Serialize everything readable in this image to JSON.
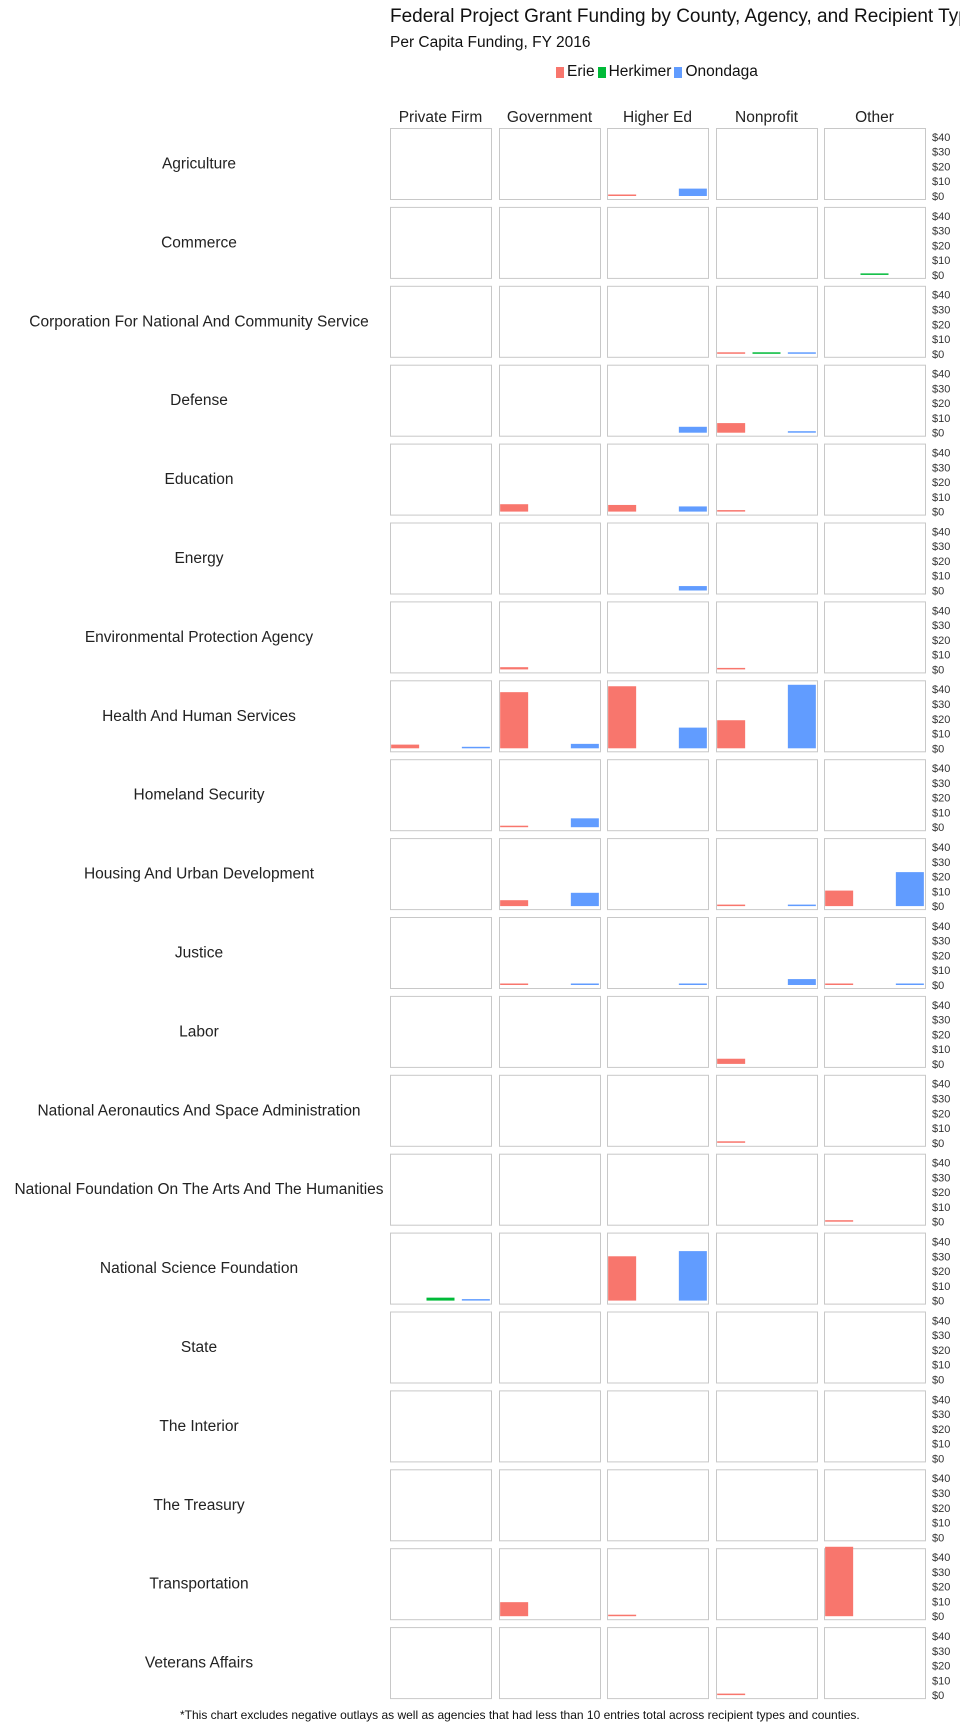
{
  "title": "Federal Project Grant Funding by County, Agency, and Recipient Type",
  "subtitle": "Per Capita Funding, FY 2016",
  "footnote": "*This chart excludes negative outlays as well as agencies that had less than 10 entries total across recipient types and counties.",
  "colors": {
    "Erie": "#f8766d",
    "Herkimer": "#00ba38",
    "Onondaga": "#619cff",
    "panel_border": "#c8c8c8"
  },
  "chart_data": {
    "type": "bar",
    "title": "Federal Project Grant Funding by County, Agency, and Recipient Type",
    "subtitle": "Per Capita Funding, FY 2016",
    "facet_columns": [
      "Private Firm",
      "Government",
      "Higher Ed",
      "Nonprofit",
      "Other"
    ],
    "facet_rows": [
      "Agriculture",
      "Commerce",
      "Corporation For National And Community Service",
      "Defense",
      "Education",
      "Energy",
      "Environmental Protection Agency",
      "Health And Human Services",
      "Homeland Security",
      "Housing And Urban Development",
      "Justice",
      "Labor",
      "National Aeronautics And Space Administration",
      "National Foundation On The Arts And The Humanities",
      "National Science Foundation",
      "State",
      "The Interior",
      "The Treasury",
      "Transportation",
      "Veterans Affairs"
    ],
    "categories": [
      "Erie",
      "Herkimer",
      "Onondaga"
    ],
    "series": [
      {
        "name": "Erie",
        "color": "#f8766d"
      },
      {
        "name": "Herkimer",
        "color": "#00ba38"
      },
      {
        "name": "Onondaga",
        "color": "#619cff"
      }
    ],
    "legend_position": "top",
    "ylim": [
      0,
      44
    ],
    "y_ticks": [
      0,
      10,
      20,
      30,
      40
    ],
    "y_tick_labels": [
      "$0",
      "$10",
      "$20",
      "$30",
      "$40"
    ],
    "grid": false,
    "values": [
      [
        [
          0,
          0,
          0
        ],
        [
          0,
          0,
          0
        ],
        [
          0.5,
          0,
          5
        ],
        [
          0,
          0,
          0
        ],
        [
          0,
          0,
          0
        ]
      ],
      [
        [
          0,
          0,
          0
        ],
        [
          0,
          0,
          0
        ],
        [
          0,
          0,
          0
        ],
        [
          0,
          0,
          0
        ],
        [
          0,
          1,
          0
        ]
      ],
      [
        [
          0,
          0,
          0
        ],
        [
          0,
          0,
          0
        ],
        [
          0,
          0,
          0
        ],
        [
          1,
          0.5,
          1
        ],
        [
          0,
          0,
          0
        ]
      ],
      [
        [
          0,
          0,
          0
        ],
        [
          0,
          0,
          0
        ],
        [
          0,
          0,
          4
        ],
        [
          6.5,
          0,
          0.5
        ],
        [
          0,
          0,
          0
        ]
      ],
      [
        [
          0,
          0,
          0
        ],
        [
          5,
          0,
          0
        ],
        [
          4.5,
          0,
          3.5
        ],
        [
          0.5,
          0,
          0
        ],
        [
          0,
          0,
          0
        ]
      ],
      [
        [
          0,
          0,
          0
        ],
        [
          0,
          0,
          0
        ],
        [
          0,
          0,
          3
        ],
        [
          0,
          0,
          0
        ],
        [
          0,
          0,
          0
        ]
      ],
      [
        [
          0,
          0,
          0
        ],
        [
          1.5,
          0,
          0
        ],
        [
          0,
          0,
          0
        ],
        [
          0.5,
          0,
          0
        ],
        [
          0,
          0,
          0
        ]
      ],
      [
        [
          2.5,
          0,
          1
        ],
        [
          38,
          0,
          3
        ],
        [
          42,
          0,
          14
        ],
        [
          19,
          0,
          43
        ],
        [
          0,
          0,
          0
        ]
      ],
      [
        [
          0,
          0,
          0
        ],
        [
          1,
          0,
          6
        ],
        [
          0,
          0,
          0
        ],
        [
          0,
          0,
          0
        ],
        [
          0,
          0,
          0
        ]
      ],
      [
        [
          0,
          0,
          0
        ],
        [
          4,
          0,
          9
        ],
        [
          0,
          0,
          0
        ],
        [
          0.5,
          0,
          0.5
        ],
        [
          10.5,
          0,
          23
        ]
      ],
      [
        [
          0,
          0,
          0
        ],
        [
          0.5,
          0,
          0.5
        ],
        [
          0,
          0,
          0.5
        ],
        [
          0,
          0,
          4
        ],
        [
          0.5,
          0,
          0.5
        ]
      ],
      [
        [
          0,
          0,
          0
        ],
        [
          0,
          0,
          0
        ],
        [
          0,
          0,
          0
        ],
        [
          3.5,
          0,
          0
        ],
        [
          0,
          0,
          0
        ]
      ],
      [
        [
          0,
          0,
          0
        ],
        [
          0,
          0,
          0
        ],
        [
          0,
          0,
          0
        ],
        [
          0.5,
          0,
          0
        ],
        [
          0,
          0,
          0
        ]
      ],
      [
        [
          0,
          0,
          0
        ],
        [
          0,
          0,
          0
        ],
        [
          0,
          0,
          0
        ],
        [
          0,
          0,
          0
        ],
        [
          1,
          0,
          0
        ]
      ],
      [
        [
          0,
          2,
          1
        ],
        [
          0,
          0,
          0
        ],
        [
          30,
          0,
          33.5
        ],
        [
          0,
          0,
          0
        ],
        [
          0,
          0,
          0
        ]
      ],
      [
        [
          0,
          0,
          0
        ],
        [
          0,
          0,
          0
        ],
        [
          0,
          0,
          0
        ],
        [
          0,
          0,
          0
        ],
        [
          0,
          0,
          0
        ]
      ],
      [
        [
          0,
          0,
          0
        ],
        [
          0,
          0,
          0
        ],
        [
          0,
          0,
          0
        ],
        [
          0,
          0,
          0
        ],
        [
          0,
          0,
          0
        ]
      ],
      [
        [
          0,
          0,
          0
        ],
        [
          0,
          0,
          0
        ],
        [
          0,
          0,
          0
        ],
        [
          0,
          0,
          0
        ],
        [
          0,
          0,
          0
        ]
      ],
      [
        [
          0,
          0,
          0
        ],
        [
          9.5,
          0,
          0
        ],
        [
          1,
          0,
          0
        ],
        [
          0,
          0,
          0
        ],
        [
          47,
          0,
          0
        ]
      ],
      [
        [
          0,
          0,
          0
        ],
        [
          0,
          0,
          0
        ],
        [
          0,
          0,
          0
        ],
        [
          1,
          0,
          0
        ],
        [
          0,
          0,
          0
        ]
      ]
    ]
  }
}
